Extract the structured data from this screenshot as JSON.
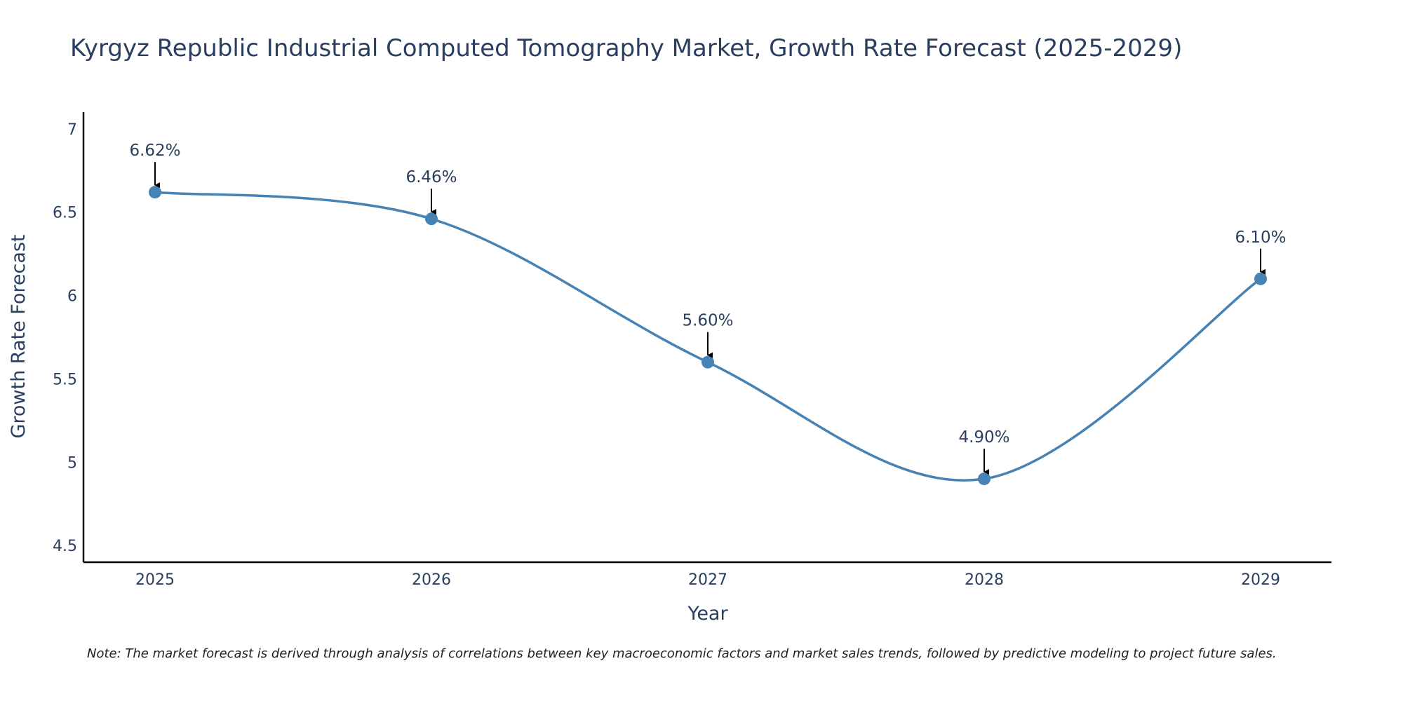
{
  "chart_data": {
    "type": "line",
    "title": "Kyrgyz Republic Industrial Computed Tomography Market, Growth Rate Forecast (2025-2029)",
    "xlabel": "Year",
    "ylabel": "Growth Rate Forecast",
    "categories": [
      "2025",
      "2026",
      "2027",
      "2028",
      "2029"
    ],
    "values": [
      6.62,
      6.46,
      5.6,
      4.9,
      6.1
    ],
    "data_labels": [
      "6.62%",
      "6.46%",
      "5.60%",
      "4.90%",
      "6.10%"
    ],
    "ylim": [
      4.4,
      7.1
    ],
    "yticks": [
      4.5,
      5,
      5.5,
      6,
      6.5,
      7
    ],
    "ytick_labels": [
      "4.5",
      "5",
      "5.5",
      "6",
      "6.5",
      "7"
    ],
    "grid": false,
    "line_color": "#4682b4",
    "marker_color": "#4682b4",
    "arrow_color": "#000000",
    "note": "Note: The market forecast is derived through analysis of correlations between key macroeconomic factors and market sales trends, followed by predictive modeling to project future sales."
  }
}
